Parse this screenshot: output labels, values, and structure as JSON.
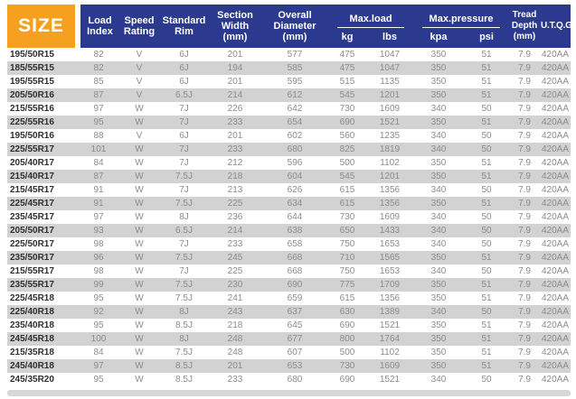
{
  "table": {
    "size_header": "SIZE",
    "col_headers": {
      "load_index": "Load Index",
      "speed_rating": "Speed Rating",
      "standard_rim": "Standard Rim",
      "section_width": "Section Width (mm)",
      "overall_diameter": "Overall Diameter (mm)",
      "max_load": "Max.load",
      "max_load_kg": "kg",
      "max_load_lbs": "lbs",
      "max_pressure": "Max.pressure",
      "max_pressure_kpa": "kpa",
      "max_pressure_psi": "psi",
      "tread_depth": "Tread Depth (mm)",
      "utqg": "U.T.Q.G"
    },
    "rows": [
      [
        "195/50R15",
        "82",
        "V",
        "6J",
        "201",
        "577",
        "475",
        "1047",
        "350",
        "51",
        "7.9",
        "420AA"
      ],
      [
        "185/55R15",
        "82",
        "V",
        "6J",
        "194",
        "585",
        "475",
        "1047",
        "350",
        "51",
        "7.9",
        "420AA"
      ],
      [
        "195/55R15",
        "85",
        "V",
        "6J",
        "201",
        "595",
        "515",
        "1135",
        "350",
        "51",
        "7.9",
        "420AA"
      ],
      [
        "205/50R16",
        "87",
        "V",
        "6.5J",
        "214",
        "612",
        "545",
        "1201",
        "350",
        "51",
        "7.9",
        "420AA"
      ],
      [
        "215/55R16",
        "97",
        "W",
        "7J",
        "226",
        "642",
        "730",
        "1609",
        "340",
        "50",
        "7.9",
        "420AA"
      ],
      [
        "225/55R16",
        "95",
        "W",
        "7J",
        "233",
        "654",
        "690",
        "1521",
        "350",
        "51",
        "7.9",
        "420AA"
      ],
      [
        "195/50R16",
        "88",
        "V",
        "6J",
        "201",
        "602",
        "560",
        "1235",
        "340",
        "50",
        "7.9",
        "420AA"
      ],
      [
        "225/55R17",
        "101",
        "W",
        "7J",
        "233",
        "680",
        "825",
        "1819",
        "340",
        "50",
        "7.9",
        "420AA"
      ],
      [
        "205/40R17",
        "84",
        "W",
        "7J",
        "212",
        "596",
        "500",
        "1102",
        "350",
        "51",
        "7.9",
        "420AA"
      ],
      [
        "215/40R17",
        "87",
        "W",
        "7.5J",
        "218",
        "604",
        "545",
        "1201",
        "350",
        "51",
        "7.9",
        "420AA"
      ],
      [
        "215/45R17",
        "91",
        "W",
        "7J",
        "213",
        "626",
        "615",
        "1356",
        "340",
        "50",
        "7.9",
        "420AA"
      ],
      [
        "225/45R17",
        "91",
        "W",
        "7.5J",
        "225",
        "634",
        "615",
        "1356",
        "350",
        "51",
        "7.9",
        "420AA"
      ],
      [
        "235/45R17",
        "97",
        "W",
        "8J",
        "236",
        "644",
        "730",
        "1609",
        "340",
        "50",
        "7.9",
        "420AA"
      ],
      [
        "205/50R17",
        "93",
        "W",
        "6.5J",
        "214",
        "638",
        "650",
        "1433",
        "340",
        "50",
        "7.9",
        "420AA"
      ],
      [
        "225/50R17",
        "98",
        "W",
        "7J",
        "233",
        "658",
        "750",
        "1653",
        "340",
        "50",
        "7.9",
        "420AA"
      ],
      [
        "235/50R17",
        "96",
        "W",
        "7.5J",
        "245",
        "668",
        "710",
        "1565",
        "350",
        "51",
        "7.9",
        "420AA"
      ],
      [
        "215/55R17",
        "98",
        "W",
        "7J",
        "225",
        "668",
        "750",
        "1653",
        "340",
        "50",
        "7.9",
        "420AA"
      ],
      [
        "235/55R17",
        "99",
        "W",
        "7.5J",
        "230",
        "690",
        "775",
        "1709",
        "350",
        "51",
        "7.9",
        "420AA"
      ],
      [
        "225/45R18",
        "95",
        "W",
        "7.5J",
        "241",
        "659",
        "615",
        "1356",
        "350",
        "51",
        "7.9",
        "420AA"
      ],
      [
        "225/40R18",
        "92",
        "W",
        "8J",
        "243",
        "637",
        "630",
        "1389",
        "340",
        "50",
        "7.9",
        "420AA"
      ],
      [
        "235/40R18",
        "95",
        "W",
        "8.5J",
        "218",
        "645",
        "690",
        "1521",
        "350",
        "51",
        "7.9",
        "420AA"
      ],
      [
        "245/45R18",
        "100",
        "W",
        "8J",
        "248",
        "677",
        "800",
        "1764",
        "350",
        "51",
        "7.9",
        "420AA"
      ],
      [
        "215/35R18",
        "84",
        "W",
        "7.5J",
        "248",
        "607",
        "500",
        "1102",
        "350",
        "51",
        "7.9",
        "420AA"
      ],
      [
        "245/40R18",
        "97",
        "W",
        "8.5J",
        "201",
        "653",
        "730",
        "1609",
        "350",
        "51",
        "7.9",
        "420AA"
      ],
      [
        "245/35R20",
        "95",
        "W",
        "8.5J",
        "233",
        "680",
        "690",
        "1521",
        "340",
        "50",
        "7.9",
        "420AA"
      ]
    ]
  },
  "colors": {
    "header_blue": "#2b3a8e",
    "size_orange": "#f6a01f",
    "stripe_gray": "#d2d2d2"
  }
}
